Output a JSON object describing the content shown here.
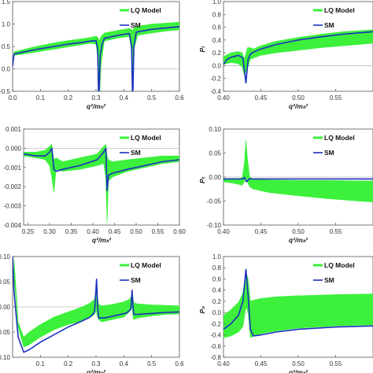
{
  "colors": {
    "lq_band": "#3cf03c",
    "sm_line": "#1c2fbf",
    "zero_line": "#bbbbbb",
    "axis": "#555555"
  },
  "chart_data": [
    {
      "type": "area",
      "panel": "top-left",
      "xlabel": "q²/mₕ²",
      "ylabel": "",
      "xlim": [
        0.0,
        0.6
      ],
      "ylim": [
        -0.5,
        1.5
      ],
      "x_ticks": [
        "0.0",
        "0.1",
        "0.2",
        "0.3",
        "0.4",
        "0.5",
        "0.6"
      ],
      "x_tick_values": [
        0.0,
        0.1,
        0.2,
        0.3,
        0.4,
        0.5,
        0.6
      ],
      "y_ticks": [
        "-0.5",
        "0.0",
        "0.5",
        "1.0",
        "1.5"
      ],
      "y_tick_values": [
        -0.5,
        0.0,
        0.5,
        1.0,
        1.5
      ],
      "legend": {
        "position": "top-right",
        "entries": [
          "LQ Model",
          "SM"
        ]
      },
      "series": [
        {
          "name": "LQ Model",
          "kind": "band",
          "x": [
            0.005,
            0.05,
            0.1,
            0.15,
            0.2,
            0.25,
            0.28,
            0.3,
            0.307,
            0.312,
            0.318,
            0.33,
            0.38,
            0.42,
            0.428,
            0.432,
            0.437,
            0.45,
            0.5,
            0.55,
            0.6
          ],
          "low": [
            0.3,
            0.34,
            0.39,
            0.44,
            0.49,
            0.54,
            0.57,
            0.55,
            0.2,
            -0.78,
            0.1,
            0.62,
            0.69,
            0.72,
            0.4,
            -0.7,
            0.45,
            0.75,
            0.8,
            0.84,
            0.87
          ],
          "high": [
            0.38,
            0.45,
            0.52,
            0.58,
            0.63,
            0.67,
            0.7,
            0.73,
            0.7,
            0.62,
            0.72,
            0.8,
            0.86,
            0.9,
            0.88,
            0.84,
            0.92,
            0.95,
            1.0,
            1.02,
            1.04
          ]
        },
        {
          "name": "SM",
          "kind": "line",
          "x": [
            0.0,
            0.005,
            0.05,
            0.1,
            0.15,
            0.2,
            0.25,
            0.28,
            0.3,
            0.306,
            0.31,
            0.315,
            0.322,
            0.33,
            0.38,
            0.42,
            0.428,
            0.432,
            0.436,
            0.445,
            0.5,
            0.55,
            0.6
          ],
          "y": [
            0.05,
            0.33,
            0.39,
            0.45,
            0.5,
            0.55,
            0.59,
            0.62,
            0.63,
            0.45,
            -0.8,
            0.3,
            0.55,
            0.68,
            0.75,
            0.79,
            0.5,
            -0.8,
            0.5,
            0.82,
            0.88,
            0.91,
            0.94
          ]
        }
      ]
    },
    {
      "type": "area",
      "panel": "top-right",
      "xlabel": "q²/mₕ²",
      "ylabel": "Pₗ",
      "xlim": [
        0.4,
        0.6
      ],
      "ylim": [
        -0.4,
        1.0
      ],
      "x_ticks": [
        "0.40",
        "0.45",
        "0.50",
        "0.55"
      ],
      "x_tick_values": [
        0.4,
        0.45,
        0.5,
        0.55
      ],
      "y_ticks": [
        "-0.4",
        "-0.2",
        "0.0",
        "0.2",
        "0.4",
        "0.6",
        "0.8",
        "1.0"
      ],
      "y_tick_values": [
        -0.4,
        -0.2,
        0.0,
        0.2,
        0.4,
        0.6,
        0.8,
        1.0
      ],
      "legend": {
        "position": "top-right",
        "entries": [
          "LQ Model",
          "SM"
        ]
      },
      "series": [
        {
          "name": "LQ Model",
          "kind": "band",
          "x": [
            0.4,
            0.41,
            0.42,
            0.425,
            0.428,
            0.432,
            0.436,
            0.44,
            0.45,
            0.47,
            0.5,
            0.53,
            0.56,
            0.6
          ],
          "low": [
            0.02,
            0.05,
            0.03,
            -0.02,
            -0.15,
            -0.05,
            0.1,
            0.12,
            0.16,
            0.2,
            0.24,
            0.28,
            0.31,
            0.35
          ],
          "high": [
            0.14,
            0.2,
            0.22,
            0.2,
            0.1,
            0.28,
            0.28,
            0.26,
            0.31,
            0.38,
            0.44,
            0.49,
            0.53,
            0.56
          ]
        },
        {
          "name": "SM",
          "kind": "line",
          "x": [
            0.4,
            0.405,
            0.41,
            0.42,
            0.426,
            0.43,
            0.433,
            0.436,
            0.44,
            0.45,
            0.47,
            0.5,
            0.53,
            0.56,
            0.6
          ],
          "y": [
            0.02,
            0.1,
            0.13,
            0.16,
            0.12,
            -0.27,
            0.1,
            0.18,
            0.21,
            0.26,
            0.33,
            0.4,
            0.45,
            0.49,
            0.53
          ]
        }
      ]
    },
    {
      "type": "area",
      "panel": "middle-left",
      "xlabel": "q²/mₕ²",
      "ylabel": "",
      "xlim": [
        0.24,
        0.6
      ],
      "ylim": [
        -0.004,
        0.001
      ],
      "x_ticks": [
        "0.25",
        "0.30",
        "0.35",
        "0.40",
        "0.45",
        "0.50",
        "0.55",
        "0.60"
      ],
      "x_tick_values": [
        0.25,
        0.3,
        0.35,
        0.4,
        0.45,
        0.5,
        0.55,
        0.6
      ],
      "y_ticks": [
        "-0.004",
        "-0.003",
        "-0.002",
        "-0.001",
        "0.000",
        "0.001"
      ],
      "y_tick_values": [
        -0.004,
        -0.003,
        -0.002,
        -0.001,
        0.0,
        0.001
      ],
      "legend": {
        "position": "top-right",
        "entries": [
          "LQ Model",
          "SM"
        ]
      },
      "series": [
        {
          "name": "LQ Model",
          "kind": "band",
          "x": [
            0.24,
            0.27,
            0.29,
            0.3,
            0.305,
            0.31,
            0.315,
            0.33,
            0.37,
            0.41,
            0.425,
            0.43,
            0.433,
            0.436,
            0.445,
            0.48,
            0.52,
            0.56,
            0.6
          ],
          "low": [
            -0.0004,
            -0.0005,
            -0.0006,
            -0.0009,
            -0.0015,
            -0.0023,
            -0.0011,
            -0.0012,
            -0.0011,
            -0.0009,
            -0.0008,
            -0.0016,
            -0.0039,
            -0.0017,
            -0.0015,
            -0.0012,
            -0.001,
            -0.0008,
            -0.0007
          ],
          "high": [
            -0.0002,
            -0.0002,
            -0.0001,
            0.0001,
            0.0002,
            -0.0006,
            -0.0005,
            -0.0007,
            -0.0005,
            -0.0003,
            0.0001,
            0.0002,
            -0.0004,
            -0.0006,
            -0.0007,
            -0.0006,
            -0.0005,
            -0.0004,
            -0.0004
          ]
        },
        {
          "name": "SM",
          "kind": "line",
          "x": [
            0.24,
            0.27,
            0.29,
            0.3,
            0.305,
            0.31,
            0.315,
            0.33,
            0.37,
            0.41,
            0.425,
            0.43,
            0.433,
            0.436,
            0.445,
            0.48,
            0.52,
            0.56,
            0.6
          ],
          "y": [
            -0.0003,
            -0.0004,
            -0.0004,
            -0.0002,
            0.0,
            -0.0011,
            -0.0012,
            -0.0011,
            -0.0009,
            -0.0006,
            -0.0002,
            0.0,
            -0.0022,
            -0.0014,
            -0.0013,
            -0.0011,
            -0.0009,
            -0.0007,
            -0.0006
          ]
        }
      ]
    },
    {
      "type": "area",
      "panel": "middle-right",
      "xlabel": "q²/mₕ²",
      "ylabel": "Pₜ",
      "xlim": [
        0.4,
        0.6
      ],
      "ylim": [
        -0.1,
        0.1
      ],
      "x_ticks": [
        "0.40",
        "0.45",
        "0.50",
        "0.55"
      ],
      "x_tick_values": [
        0.4,
        0.45,
        0.5,
        0.55
      ],
      "y_ticks": [
        "-0.10",
        "-0.05",
        "0.00",
        "0.05",
        "0.10"
      ],
      "y_tick_values": [
        -0.1,
        -0.05,
        0.0,
        0.05,
        0.1
      ],
      "legend": {
        "position": "top-right",
        "entries": [
          "LQ Model",
          "SM"
        ]
      },
      "series": [
        {
          "name": "LQ Model",
          "kind": "band",
          "x": [
            0.4,
            0.41,
            0.42,
            0.425,
            0.428,
            0.43,
            0.432,
            0.435,
            0.44,
            0.46,
            0.5,
            0.54,
            0.58,
            0.6
          ],
          "low": [
            -0.01,
            -0.012,
            -0.015,
            -0.017,
            -0.01,
            0.0,
            -0.01,
            -0.02,
            -0.025,
            -0.032,
            -0.039,
            -0.045,
            -0.05,
            -0.052
          ],
          "high": [
            -0.003,
            -0.003,
            -0.003,
            -0.002,
            0.03,
            0.077,
            0.04,
            0.0,
            -0.004,
            -0.006,
            -0.007,
            -0.007,
            -0.008,
            -0.008
          ]
        },
        {
          "name": "SM",
          "kind": "line",
          "x": [
            0.4,
            0.42,
            0.425,
            0.428,
            0.431,
            0.434,
            0.44,
            0.5,
            0.6
          ],
          "y": [
            -0.004,
            -0.004,
            -0.004,
            -0.001,
            -0.01,
            -0.004,
            -0.004,
            -0.004,
            -0.004
          ]
        }
      ]
    },
    {
      "type": "area",
      "panel": "bottom-left",
      "xlabel": "q²/mₕ²",
      "ylabel": "",
      "xlim": [
        0.0,
        0.6
      ],
      "ylim": [
        -0.1,
        0.1
      ],
      "x_ticks": [
        "0.1",
        "0.2",
        "0.3",
        "0.4",
        "0.5",
        "0.6"
      ],
      "x_tick_values": [
        0.1,
        0.2,
        0.3,
        0.4,
        0.5,
        0.6
      ],
      "y_ticks": [
        "-0.10",
        "-0.05",
        "0.00",
        "0.05",
        "0.10"
      ],
      "y_tick_values": [
        -0.1,
        -0.05,
        0.0,
        0.05,
        0.1
      ],
      "legend": {
        "position": "top-right",
        "entries": [
          "LQ Model",
          "SM"
        ]
      },
      "series": [
        {
          "name": "LQ Model",
          "kind": "band",
          "x": [
            0.005,
            0.02,
            0.04,
            0.06,
            0.1,
            0.15,
            0.2,
            0.25,
            0.28,
            0.295,
            0.3,
            0.305,
            0.31,
            0.32,
            0.36,
            0.4,
            0.42,
            0.43,
            0.433,
            0.436,
            0.45,
            0.5,
            0.55,
            0.6
          ],
          "low": [
            0.06,
            -0.04,
            -0.08,
            -0.075,
            -0.06,
            -0.045,
            -0.035,
            -0.028,
            -0.02,
            -0.015,
            -0.005,
            -0.02,
            -0.025,
            -0.03,
            -0.025,
            -0.02,
            -0.01,
            0.0,
            -0.02,
            -0.025,
            -0.022,
            -0.018,
            -0.015,
            -0.014
          ],
          "high": [
            0.095,
            -0.03,
            -0.06,
            -0.05,
            -0.035,
            -0.02,
            -0.01,
            0.0,
            0.008,
            0.015,
            0.035,
            0.02,
            0.005,
            0.002,
            0.005,
            0.01,
            0.015,
            0.022,
            0.018,
            0.008,
            0.006,
            0.004,
            0.003,
            0.002
          ]
        },
        {
          "name": "SM",
          "kind": "line",
          "x": [
            0.0,
            0.005,
            0.02,
            0.04,
            0.06,
            0.1,
            0.15,
            0.2,
            0.25,
            0.28,
            0.295,
            0.302,
            0.306,
            0.31,
            0.33,
            0.38,
            0.41,
            0.425,
            0.43,
            0.433,
            0.436,
            0.45,
            0.5,
            0.55,
            0.6
          ],
          "y": [
            0.1,
            0.03,
            -0.06,
            -0.09,
            -0.085,
            -0.07,
            -0.055,
            -0.04,
            -0.028,
            -0.02,
            -0.01,
            0.055,
            0.0,
            -0.022,
            -0.022,
            -0.016,
            -0.012,
            -0.005,
            0.033,
            0.0,
            -0.015,
            -0.015,
            -0.013,
            -0.011,
            -0.01
          ]
        }
      ]
    },
    {
      "type": "area",
      "panel": "bottom-right",
      "xlabel": "q²/mₕ²",
      "ylabel": "Pₙ",
      "xlim": [
        0.4,
        0.6
      ],
      "ylim": [
        -0.8,
        1.0
      ],
      "x_ticks": [
        "0.40",
        "0.45",
        "0.50",
        "0.55"
      ],
      "x_tick_values": [
        0.4,
        0.45,
        0.5,
        0.55
      ],
      "y_ticks": [
        "-0.8",
        "-0.6",
        "-0.4",
        "-0.2",
        "0.0",
        "0.2",
        "0.4",
        "0.6",
        "0.8",
        "1.0"
      ],
      "y_tick_values": [
        -0.8,
        -0.6,
        -0.4,
        -0.2,
        0.0,
        0.2,
        0.4,
        0.6,
        0.8,
        1.0
      ],
      "legend": {
        "position": "top-right",
        "entries": [
          "LQ Model",
          "SM"
        ]
      },
      "series": [
        {
          "name": "LQ Model",
          "kind": "band",
          "x": [
            0.4,
            0.41,
            0.42,
            0.426,
            0.43,
            0.433,
            0.436,
            0.44,
            0.45,
            0.47,
            0.5,
            0.55,
            0.6
          ],
          "low": [
            -0.45,
            -0.42,
            -0.35,
            -0.25,
            0.1,
            0.0,
            -0.45,
            -0.42,
            -0.38,
            -0.33,
            -0.28,
            -0.24,
            -0.22
          ],
          "high": [
            -0.05,
            0.05,
            0.18,
            0.35,
            0.72,
            0.6,
            0.2,
            0.22,
            0.25,
            0.28,
            0.3,
            0.32,
            0.33
          ]
        },
        {
          "name": "SM",
          "kind": "line",
          "x": [
            0.4,
            0.41,
            0.42,
            0.426,
            0.43,
            0.433,
            0.436,
            0.44,
            0.45,
            0.47,
            0.5,
            0.55,
            0.6
          ],
          "y": [
            -0.3,
            -0.2,
            -0.05,
            0.2,
            0.77,
            0.3,
            -0.3,
            -0.42,
            -0.4,
            -0.35,
            -0.3,
            -0.26,
            -0.24
          ]
        }
      ]
    }
  ]
}
